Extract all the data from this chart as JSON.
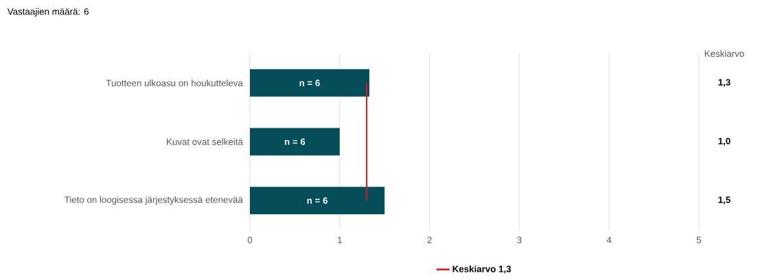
{
  "chart_data": {
    "type": "bar",
    "orientation": "horizontal",
    "title": "Vastaajien määrä: 6",
    "categories": [
      "Tuotteen ulkoasu on houkutteleva",
      "Kuvat ovat selkeitä",
      "Tieto on loogisessa järjestyksessä etenevää"
    ],
    "values": [
      1.33,
      1.0,
      1.5
    ],
    "color": "#064d5a",
    "value_labels": [
      "1,3",
      "1,0",
      "1,5"
    ],
    "y2label": "Keskiarvo",
    "annotations": [
      "n = 6",
      "n = 6",
      "n = 6"
    ],
    "ref_lines": [
      {
        "axis": "x",
        "value": 1.3,
        "label": "Keskiarvo 1,3",
        "color": "#e3141b"
      }
    ],
    "xlim": [
      0,
      5
    ],
    "xticks": [
      0,
      1,
      2,
      3,
      4,
      5
    ],
    "grid": "x",
    "legend": "bottom"
  }
}
